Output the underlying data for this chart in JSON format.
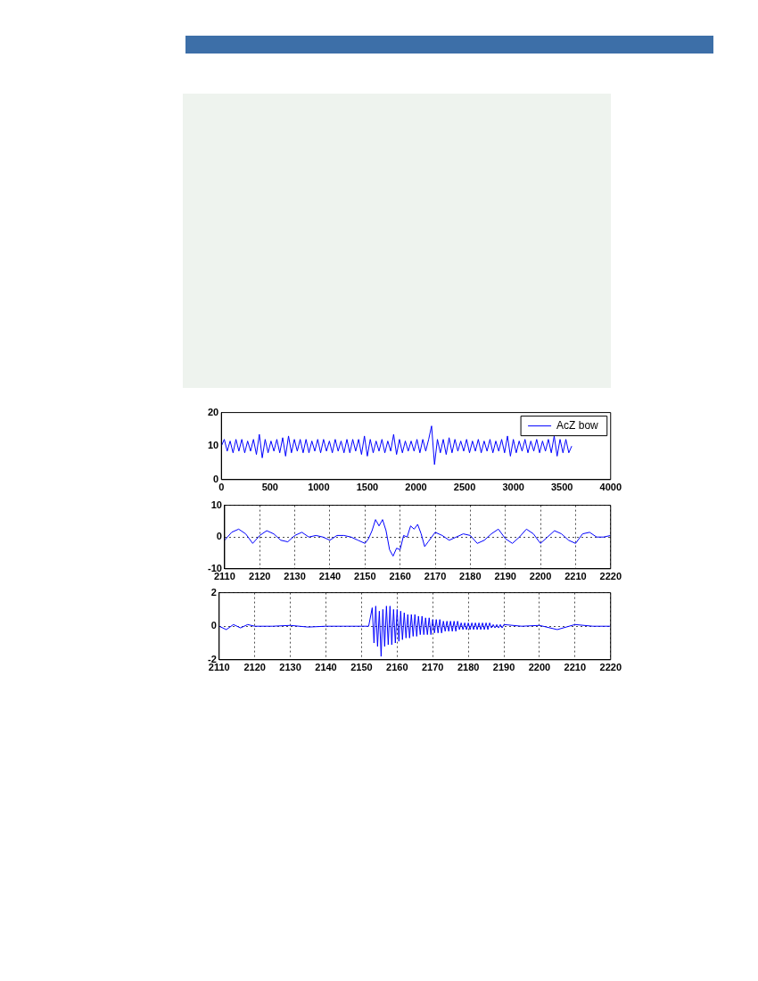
{
  "chart_data": [
    {
      "type": "line",
      "xlim": [
        0,
        4000
      ],
      "xticks": [
        0,
        500,
        1000,
        1500,
        2000,
        2500,
        3000,
        3500,
        4000
      ],
      "ylim": [
        0,
        20
      ],
      "yticks": [
        0,
        10,
        20
      ],
      "grid": false,
      "legend": "top right",
      "x": [
        0,
        30,
        60,
        90,
        120,
        150,
        180,
        210,
        240,
        270,
        300,
        330,
        360,
        390,
        420,
        450,
        480,
        510,
        540,
        570,
        600,
        630,
        660,
        690,
        720,
        750,
        780,
        810,
        840,
        870,
        900,
        930,
        960,
        990,
        1020,
        1050,
        1080,
        1110,
        1140,
        1170,
        1200,
        1230,
        1260,
        1290,
        1320,
        1350,
        1380,
        1410,
        1440,
        1470,
        1500,
        1530,
        1560,
        1590,
        1620,
        1650,
        1680,
        1710,
        1740,
        1770,
        1800,
        1830,
        1860,
        1890,
        1920,
        1950,
        1980,
        2010,
        2040,
        2070,
        2100,
        2130,
        2160,
        2190,
        2220,
        2250,
        2280,
        2310,
        2340,
        2370,
        2400,
        2430,
        2460,
        2490,
        2520,
        2550,
        2580,
        2610,
        2640,
        2670,
        2700,
        2730,
        2760,
        2790,
        2820,
        2850,
        2880,
        2910,
        2940,
        2970,
        3000,
        3030,
        3060,
        3090,
        3120,
        3150,
        3180,
        3210,
        3240,
        3270,
        3300,
        3330,
        3360,
        3390,
        3420,
        3450,
        3480,
        3510,
        3540,
        3570,
        3600
      ],
      "series": [
        {
          "name": "AcZ bow",
          "color": "#0000ff",
          "values": [
            10,
            12,
            8.5,
            11.5,
            8,
            12,
            8.5,
            12,
            8,
            11.5,
            8.5,
            12,
            7.5,
            13.5,
            6.5,
            12,
            8,
            11.5,
            8.5,
            12,
            8,
            12.5,
            7,
            13,
            8,
            12,
            8.5,
            12,
            8,
            12,
            8,
            11.5,
            8.5,
            12,
            8,
            12,
            8.5,
            11.5,
            8,
            12,
            8.5,
            11.5,
            8,
            12,
            8,
            12,
            8.5,
            12,
            7.5,
            13,
            7,
            12,
            8,
            11.5,
            8.5,
            12,
            8,
            11.5,
            8.5,
            13.5,
            7.5,
            12,
            8,
            11.5,
            8.5,
            11.5,
            8.5,
            12,
            8,
            12,
            8.5,
            12,
            16,
            4.5,
            12,
            8,
            12,
            7.5,
            12.5,
            8,
            12,
            8.5,
            11.5,
            8.5,
            12,
            8,
            11.5,
            8.5,
            12,
            8,
            11.5,
            8.5,
            12,
            8,
            11.5,
            8.5,
            12,
            8,
            13,
            7,
            12,
            8,
            11.5,
            8.5,
            12,
            8,
            11.5,
            8.5,
            12,
            8,
            11.5,
            8.5,
            12,
            8,
            13,
            7,
            12,
            8,
            12,
            8,
            10
          ]
        }
      ]
    },
    {
      "type": "line",
      "xlim": [
        2110,
        2220
      ],
      "xticks": [
        2110,
        2120,
        2130,
        2140,
        2150,
        2160,
        2170,
        2180,
        2190,
        2200,
        2210,
        2220
      ],
      "ylim": [
        -10,
        10
      ],
      "yticks": [
        -10,
        0,
        10
      ],
      "grid": true,
      "x": [
        2110,
        2112,
        2114,
        2116,
        2118,
        2120,
        2122,
        2124,
        2126,
        2128,
        2130,
        2132,
        2134,
        2136,
        2138,
        2140,
        2142,
        2144,
        2146,
        2148,
        2150,
        2151,
        2152,
        2153,
        2154,
        2155,
        2156,
        2157,
        2158,
        2159,
        2160,
        2161,
        2162,
        2163,
        2164,
        2165,
        2166,
        2167,
        2168,
        2169,
        2170,
        2172,
        2174,
        2176,
        2178,
        2180,
        2182,
        2184,
        2186,
        2188,
        2190,
        2192,
        2194,
        2196,
        2198,
        2200,
        2202,
        2204,
        2206,
        2208,
        2210,
        2212,
        2214,
        2216,
        2218,
        2220
      ],
      "series": [
        {
          "color": "#0000ff",
          "values": [
            -1,
            1.5,
            2.5,
            1,
            -2,
            0.5,
            2,
            1,
            -1,
            -1.5,
            0.5,
            1.5,
            0,
            0.5,
            0,
            -1,
            0.5,
            0.5,
            0,
            -1,
            -2,
            -0.5,
            2,
            5.5,
            3.5,
            5.5,
            2,
            -4,
            -6,
            -3.5,
            -4,
            0.5,
            0,
            3.5,
            2.5,
            4,
            1,
            -3,
            -1.5,
            0,
            1.5,
            0.5,
            -1,
            0,
            1,
            0.5,
            -2,
            -1,
            1,
            2.5,
            -0.5,
            -2,
            0,
            2.5,
            1,
            -2,
            0,
            2,
            1,
            -1,
            -2,
            1,
            1.5,
            0,
            0,
            0.5
          ]
        }
      ]
    },
    {
      "type": "line",
      "xlim": [
        2110,
        2220
      ],
      "xticks": [
        2110,
        2120,
        2130,
        2140,
        2150,
        2160,
        2170,
        2180,
        2190,
        2200,
        2210,
        2220
      ],
      "ylim": [
        -2,
        2
      ],
      "yticks": [
        -2,
        0,
        2
      ],
      "grid": true,
      "x": [
        2110,
        2112,
        2114,
        2116,
        2118,
        2120,
        2125,
        2130,
        2135,
        2140,
        2145,
        2150,
        2152,
        2153,
        2153.5,
        2154,
        2154.5,
        2155,
        2155.5,
        2156,
        2156.5,
        2157,
        2157.5,
        2158,
        2158.5,
        2159,
        2159.5,
        2160,
        2160.5,
        2161,
        2161.5,
        2162,
        2162.5,
        2163,
        2163.5,
        2164,
        2164.5,
        2165,
        2165.5,
        2166,
        2166.5,
        2167,
        2167.5,
        2168,
        2168.5,
        2169,
        2169.5,
        2170,
        2170.5,
        2171,
        2171.5,
        2172,
        2172.5,
        2173,
        2173.5,
        2174,
        2174.5,
        2175,
        2175.5,
        2176,
        2176.5,
        2177,
        2177.5,
        2178,
        2178.5,
        2179,
        2179.5,
        2180,
        2180.5,
        2181,
        2181.5,
        2182,
        2182.5,
        2183,
        2183.5,
        2184,
        2184.5,
        2185,
        2185.5,
        2186,
        2186.5,
        2187,
        2187.5,
        2188,
        2188.5,
        2189,
        2189.5,
        2190,
        2195,
        2200,
        2205,
        2210,
        2215,
        2220
      ],
      "series": [
        {
          "color": "#0000ff",
          "values": [
            0,
            -0.2,
            0.1,
            -0.1,
            0.1,
            0,
            0,
            0.05,
            -0.05,
            0,
            0,
            0,
            0,
            1.1,
            -1,
            1.2,
            -1.2,
            0.9,
            -1.8,
            1,
            -1.2,
            1.2,
            -1.1,
            1.2,
            -1.1,
            1,
            -1,
            1,
            -0.9,
            0.9,
            -0.8,
            0.8,
            -0.7,
            0.7,
            -0.7,
            0.7,
            -0.6,
            0.7,
            -0.6,
            0.6,
            -0.5,
            0.6,
            -0.5,
            0.5,
            -0.5,
            0.5,
            -0.5,
            0.4,
            -0.4,
            0.4,
            -0.4,
            0.4,
            -0.4,
            0.3,
            -0.3,
            0.3,
            -0.3,
            0.3,
            -0.3,
            0.3,
            -0.3,
            0.3,
            -0.2,
            0.2,
            -0.2,
            0.2,
            -0.2,
            0.2,
            -0.2,
            0.2,
            -0.2,
            0.2,
            -0.2,
            0.2,
            -0.2,
            0.2,
            -0.2,
            0.2,
            -0.2,
            0.2,
            -0.1,
            0.1,
            -0.1,
            0.1,
            -0.1,
            0.1,
            -0.1,
            0.1,
            0,
            0.05,
            -0.2,
            0.1,
            0,
            0
          ]
        }
      ]
    }
  ]
}
